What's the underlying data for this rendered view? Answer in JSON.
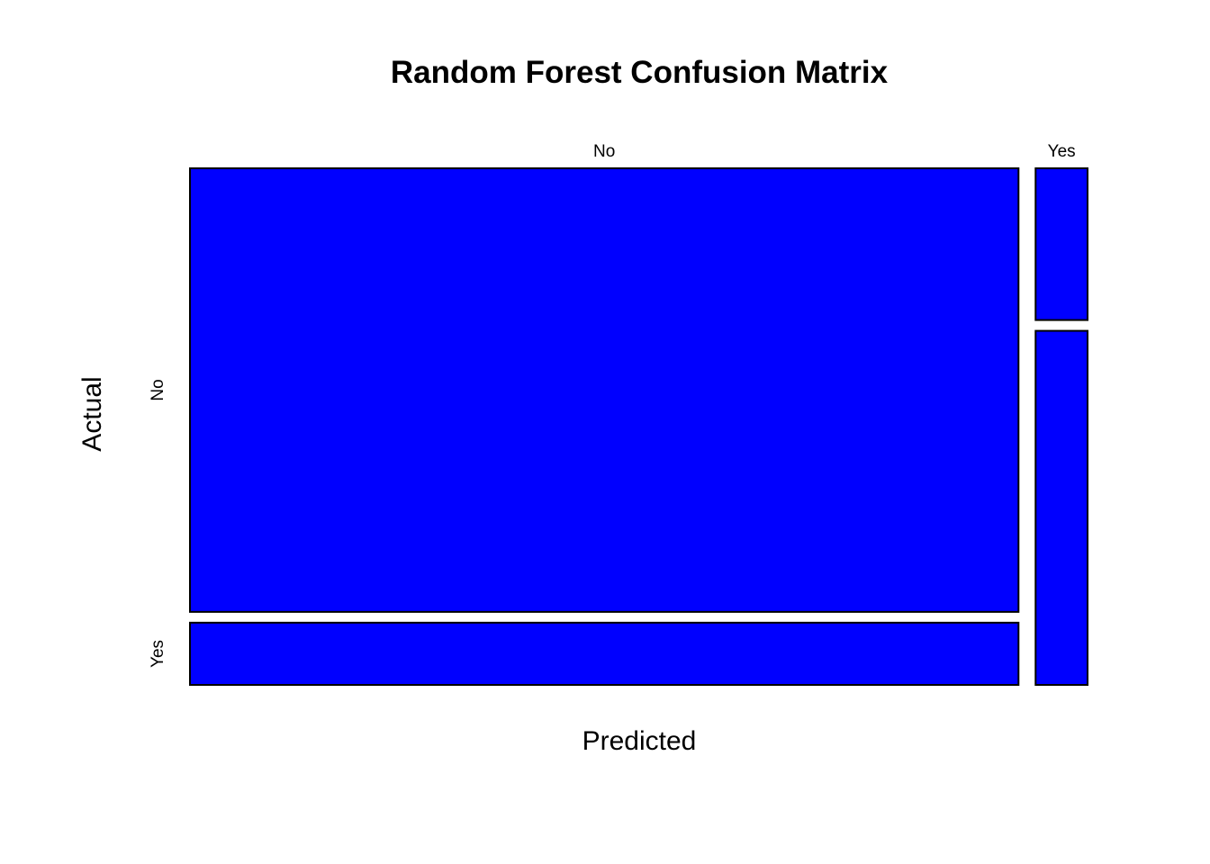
{
  "chart_data": {
    "type": "mosaic",
    "title": "Random Forest Confusion Matrix",
    "xlabel": "Predicted",
    "ylabel": "Actual",
    "predicted_categories": [
      "No",
      "Yes"
    ],
    "actual_categories": [
      "No",
      "Yes"
    ],
    "predicted_proportions": [
      0.941,
      0.059
    ],
    "actual_proportions_within_predicted": {
      "No": [
        0.877,
        0.123
      ],
      "Yes": [
        0.3,
        0.7
      ]
    },
    "fill_color": "#0000ff",
    "border_color": "#000000"
  }
}
